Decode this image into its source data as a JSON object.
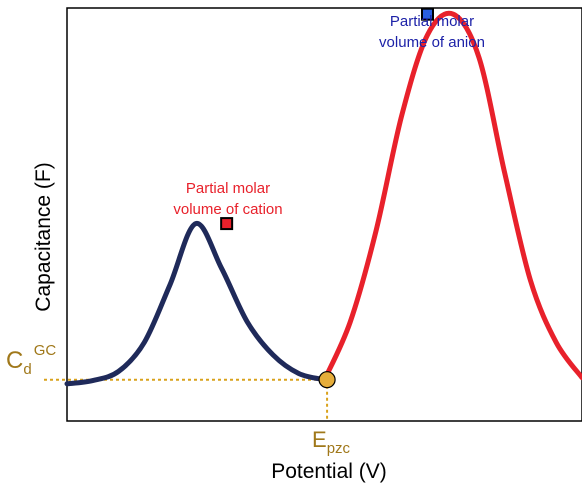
{
  "chart_data": {
    "type": "line",
    "xlabel": "Potential (V)",
    "ylabel": "Capacitance (F)",
    "xlim": [
      0,
      10
    ],
    "ylim": [
      0,
      10
    ],
    "grid": false,
    "series": [
      {
        "color": "#1f2a5a",
        "x": [
          0.0,
          0.5,
          1.0,
          1.5,
          2.0,
          2.5,
          3.0,
          3.5,
          4.0,
          4.5,
          5.0
        ],
        "y": [
          0.9,
          0.98,
          1.2,
          1.9,
          3.3,
          4.78,
          3.7,
          2.4,
          1.6,
          1.15,
          1.0
        ]
      },
      {
        "color": "#e8212b",
        "x": [
          5.0,
          5.5,
          6.0,
          6.5,
          7.0,
          7.5,
          8.0,
          8.5,
          9.0,
          9.5,
          10.0
        ],
        "y": [
          1.0,
          2.4,
          4.6,
          7.4,
          9.35,
          9.85,
          8.8,
          6.0,
          3.4,
          1.9,
          1.05
        ]
      }
    ],
    "annotations": {
      "cation_label_line1": "Partial molar",
      "cation_label_line2": "volume of cation",
      "cation_color": "#e8212b",
      "cation_point": {
        "x": 3.1,
        "y": 4.78
      },
      "anion_label_line1": "Partial molar",
      "anion_label_line2": "volume of anion",
      "anion_color": "#1d22a8",
      "anion_point": {
        "x": 7.0,
        "y": 9.85
      },
      "epzc_point": {
        "x": 5.05,
        "y": 1.0
      },
      "marker_color": "#e6ad3a",
      "guide_color": "#d9a21c",
      "cd_main": "C",
      "cd_sub": "d",
      "cd_sup": "GC",
      "epzc_main": "E",
      "epzc_sub": "pzc",
      "label_color": "#a0781a"
    }
  }
}
